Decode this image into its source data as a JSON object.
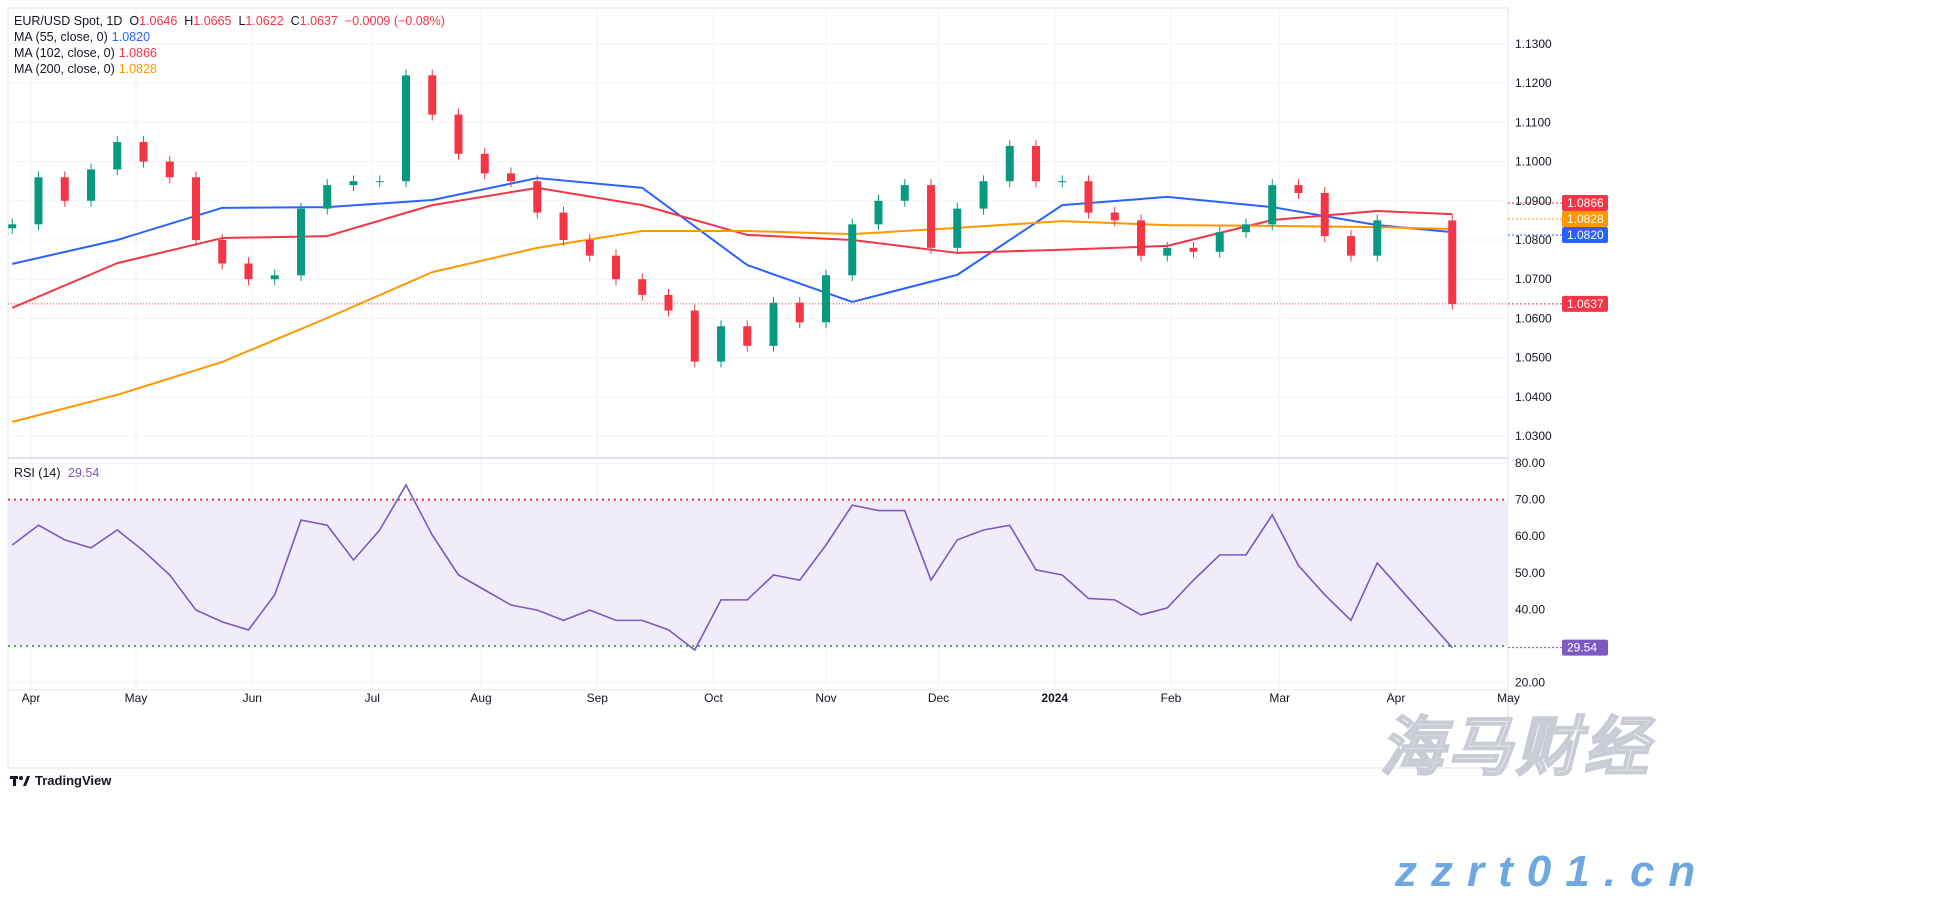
{
  "legend": {
    "symbol": "EUR/USD Spot, 1D",
    "o_label": "O",
    "o": "1.0646",
    "h_label": "H",
    "h": "1.0665",
    "l_label": "L",
    "l": "1.0622",
    "c_label": "C",
    "c": "1.0637",
    "change": "−0.0009 (−0.08%)",
    "ma55": {
      "label": "MA (55, close, 0)",
      "value": "1.0820",
      "color": "#2962ff"
    },
    "ma102": {
      "label": "MA (102, close, 0)",
      "value": "1.0866",
      "color": "#f23645"
    },
    "ma200": {
      "label": "MA (200, close, 0)",
      "value": "1.0828",
      "color": "#ff9800"
    }
  },
  "rsi_legend": {
    "label": "RSI (14)",
    "value": "29.54",
    "color": "#7e57c2"
  },
  "branding": {
    "tradingview": "TradingView"
  },
  "watermark": {
    "cn": "海马财经",
    "site": "zzrt01.cn"
  },
  "chart_data": [
    {
      "type": "candlestick",
      "title": "EUR/USD Spot, 1D",
      "ylim": [
        1.025,
        1.133
      ],
      "yticks": [
        "1.1300",
        "1.1200",
        "1.1100",
        "1.1000",
        "1.0900",
        "1.0800",
        "1.0700",
        "1.0600",
        "1.0500",
        "1.0400",
        "1.0300"
      ],
      "xticks": [
        {
          "label": "Apr",
          "date": "2023-04-03"
        },
        {
          "label": "May",
          "date": "2023-05-01"
        },
        {
          "label": "Jun",
          "date": "2023-06-01"
        },
        {
          "label": "Jul",
          "date": "2023-07-03"
        },
        {
          "label": "Aug",
          "date": "2023-08-01"
        },
        {
          "label": "Sep",
          "date": "2023-09-01"
        },
        {
          "label": "Oct",
          "date": "2023-10-02"
        },
        {
          "label": "Nov",
          "date": "2023-11-01"
        },
        {
          "label": "Dec",
          "date": "2023-12-01"
        },
        {
          "label": "2024",
          "date": "2024-01-01",
          "bold": true
        },
        {
          "label": "Feb",
          "date": "2024-02-01"
        },
        {
          "label": "Mar",
          "date": "2024-03-01"
        },
        {
          "label": "Apr",
          "date": "2024-04-01"
        },
        {
          "label": "May",
          "date": "2024-05-01"
        }
      ],
      "grid": true,
      "up_color": "#089981",
      "down_color": "#f23645",
      "x": [
        "2023-03-29",
        "2023-04-05",
        "2023-04-12",
        "2023-04-19",
        "2023-04-26",
        "2023-05-03",
        "2023-05-10",
        "2023-05-17",
        "2023-05-24",
        "2023-05-31",
        "2023-06-07",
        "2023-06-14",
        "2023-06-21",
        "2023-06-28",
        "2023-07-05",
        "2023-07-12",
        "2023-07-19",
        "2023-07-26",
        "2023-08-02",
        "2023-08-09",
        "2023-08-16",
        "2023-08-23",
        "2023-08-30",
        "2023-09-06",
        "2023-09-13",
        "2023-09-20",
        "2023-09-27",
        "2023-10-04",
        "2023-10-11",
        "2023-10-18",
        "2023-10-25",
        "2023-11-01",
        "2023-11-08",
        "2023-11-15",
        "2023-11-22",
        "2023-11-29",
        "2023-12-06",
        "2023-12-13",
        "2023-12-20",
        "2023-12-27",
        "2024-01-03",
        "2024-01-10",
        "2024-01-17",
        "2024-01-24",
        "2024-01-31",
        "2024-02-07",
        "2024-02-14",
        "2024-02-21",
        "2024-02-28",
        "2024-03-06",
        "2024-03-13",
        "2024-03-20",
        "2024-03-27",
        "2024-04-16"
      ],
      "close": [
        1.084,
        1.096,
        1.09,
        1.098,
        1.105,
        1.1,
        1.096,
        1.08,
        1.074,
        1.07,
        1.071,
        1.088,
        1.094,
        1.095,
        1.095,
        1.122,
        1.112,
        1.102,
        1.097,
        1.095,
        1.087,
        1.08,
        1.076,
        1.07,
        1.066,
        1.062,
        1.049,
        1.058,
        1.053,
        1.064,
        1.059,
        1.071,
        1.084,
        1.09,
        1.094,
        1.078,
        1.088,
        1.095,
        1.104,
        1.095,
        1.095,
        1.087,
        1.085,
        1.076,
        1.078,
        1.077,
        1.082,
        1.084,
        1.094,
        1.092,
        1.081,
        1.076,
        1.085,
        1.0637
      ],
      "last_price": {
        "value": 1.0637,
        "label": "1.0637",
        "color": "#f23645"
      },
      "moving_averages": [
        {
          "name": "MA (55, close, 0)",
          "color": "#2962ff",
          "last_label": "1.0820",
          "x": [
            "2023-03-29",
            "2023-04-26",
            "2023-05-24",
            "2023-06-21",
            "2023-07-19",
            "2023-08-16",
            "2023-09-13",
            "2023-10-11",
            "2023-11-08",
            "2023-12-06",
            "2024-01-03",
            "2024-01-31",
            "2024-02-28",
            "2024-03-27",
            "2024-04-16"
          ],
          "values": [
            1.0739,
            1.08,
            1.0882,
            1.0884,
            1.0902,
            1.0958,
            1.0933,
            1.0736,
            1.0642,
            1.0711,
            1.0889,
            1.091,
            1.0884,
            1.0838,
            1.082
          ]
        },
        {
          "name": "MA (102, close, 0)",
          "color": "#f23645",
          "last_label": "1.0866",
          "x": [
            "2023-03-29",
            "2023-04-26",
            "2023-05-24",
            "2023-06-21",
            "2023-07-19",
            "2023-08-16",
            "2023-09-13",
            "2023-10-11",
            "2023-11-08",
            "2023-12-06",
            "2024-01-03",
            "2024-01-31",
            "2024-02-28",
            "2024-03-27",
            "2024-04-16"
          ],
          "values": [
            1.0627,
            1.0741,
            1.0805,
            1.081,
            1.0889,
            1.0933,
            1.0889,
            1.0813,
            1.08,
            1.0767,
            1.0775,
            1.0785,
            1.0851,
            1.0874,
            1.0866
          ]
        },
        {
          "name": "MA (200, close, 0)",
          "color": "#ff9800",
          "last_label": "1.0828",
          "x": [
            "2023-03-29",
            "2023-04-26",
            "2023-05-24",
            "2023-06-21",
            "2023-07-19",
            "2023-08-16",
            "2023-09-13",
            "2023-10-11",
            "2023-11-08",
            "2023-12-06",
            "2024-01-03",
            "2024-01-31",
            "2024-02-28",
            "2024-03-27",
            "2024-04-16"
          ],
          "values": [
            1.0336,
            1.0405,
            1.0489,
            1.0601,
            1.0718,
            1.078,
            1.0823,
            1.0823,
            1.0815,
            1.0831,
            1.0848,
            1.0838,
            1.0836,
            1.0833,
            1.0828
          ]
        }
      ]
    },
    {
      "type": "line",
      "title": "RSI (14)",
      "ylim": [
        15,
        80
      ],
      "yticks": [
        "80.00",
        "70.00",
        "60.00",
        "50.00",
        "40.00",
        "20.00"
      ],
      "overbought": 70,
      "oversold": 30,
      "overbought_color": "#f23645",
      "oversold_color": "#4caf50",
      "band_color": "#f1ecf9",
      "line_color": "#7e57c2",
      "last_label": "29.54",
      "values": [
        57.6,
        63,
        59,
        56.8,
        61.7,
        56,
        49.4,
        39.8,
        36.6,
        34.4,
        44,
        64.4,
        63,
        53.5,
        61.7,
        74,
        60.3,
        49.4,
        45.3,
        41.2,
        39.8,
        37,
        39.8,
        37,
        37,
        34.4,
        28.9,
        42.6,
        42.6,
        49.4,
        48,
        57.6,
        68.5,
        67,
        67,
        48,
        59,
        61.7,
        63,
        50.8,
        49.4,
        43,
        42.6,
        38.5,
        40.4,
        48,
        54.9,
        54.9,
        65.8,
        52,
        44,
        37,
        52.7,
        29.54
      ]
    }
  ]
}
